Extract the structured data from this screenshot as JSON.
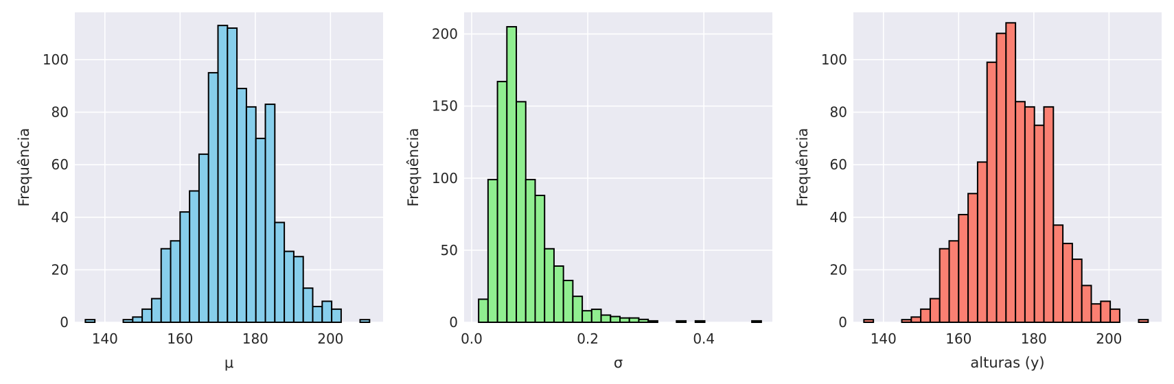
{
  "chart_data": [
    {
      "type": "bar",
      "xlabel": "μ",
      "ylabel": "Frequência",
      "xlim": [
        132,
        214
      ],
      "ylim": [
        0,
        118
      ],
      "xticks": [
        "140",
        "160",
        "180",
        "200"
      ],
      "yticks": [
        "0",
        "20",
        "40",
        "60",
        "80",
        "100"
      ],
      "grid": true,
      "bin_start": 134.8,
      "bin_width": 2.52,
      "values": [
        1,
        0,
        0,
        0,
        1,
        2,
        5,
        9,
        28,
        31,
        42,
        50,
        64,
        95,
        113,
        112,
        89,
        82,
        70,
        83,
        38,
        27,
        25,
        13,
        6,
        8,
        5,
        0,
        0,
        1
      ],
      "bar_color": "#87ceeb"
    },
    {
      "type": "bar",
      "xlabel": "σ",
      "ylabel": "Frequência",
      "xlim": [
        -0.013,
        0.518
      ],
      "ylim": [
        0,
        215
      ],
      "xticks": [
        "0.0",
        "0.2",
        "0.4"
      ],
      "yticks": [
        "0",
        "50",
        "100",
        "150",
        "200"
      ],
      "grid": true,
      "bin_start": 0.012,
      "bin_width": 0.01623,
      "values": [
        16,
        99,
        167,
        205,
        153,
        99,
        88,
        51,
        39,
        29,
        18,
        8,
        9,
        5,
        4,
        3,
        3,
        2,
        1,
        0,
        0,
        1,
        0,
        1,
        0,
        0,
        0,
        0,
        0,
        1
      ],
      "bar_color": "#90ee90"
    },
    {
      "type": "bar",
      "xlabel": "alturas (y)",
      "ylabel": "Frequência",
      "xlim": [
        132,
        214
      ],
      "ylim": [
        0,
        118
      ],
      "xticks": [
        "140",
        "160",
        "180",
        "200"
      ],
      "yticks": [
        "0",
        "20",
        "40",
        "60",
        "80",
        "100"
      ],
      "grid": true,
      "bin_start": 134.8,
      "bin_width": 2.52,
      "values": [
        1,
        0,
        0,
        0,
        1,
        2,
        5,
        9,
        28,
        31,
        41,
        49,
        61,
        99,
        110,
        114,
        84,
        82,
        75,
        82,
        37,
        30,
        24,
        14,
        7,
        8,
        5,
        0,
        0,
        1
      ],
      "bar_color": "#fa8072"
    }
  ]
}
